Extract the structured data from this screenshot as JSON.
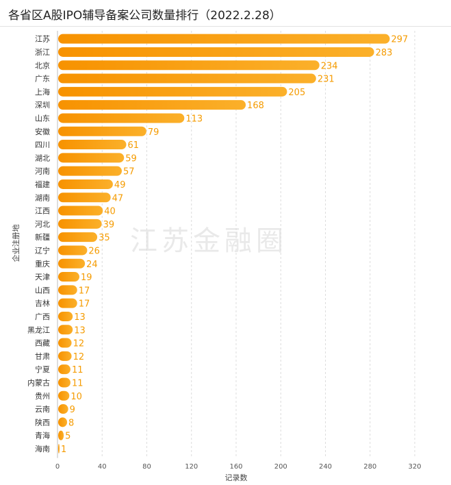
{
  "watermark": "江苏金融圈",
  "chart_data": {
    "type": "bar",
    "orientation": "horizontal",
    "title": "各省区A股IPO辅导备案公司数量排行（2022.2.28）",
    "xlabel": "记录数",
    "ylabel": "企业注册地",
    "xlim": [
      0,
      320
    ],
    "xticks": [
      0,
      40,
      80,
      120,
      160,
      200,
      240,
      280,
      320
    ],
    "grid": true,
    "bar_color": "#f7a300",
    "categories": [
      "江苏",
      "浙江",
      "北京",
      "广东",
      "上海",
      "深圳",
      "山东",
      "安徽",
      "四川",
      "湖北",
      "河南",
      "福建",
      "湖南",
      "江西",
      "河北",
      "新疆",
      "辽宁",
      "重庆",
      "天津",
      "山西",
      "吉林",
      "广西",
      "黑龙江",
      "西藏",
      "甘肃",
      "宁夏",
      "内蒙古",
      "贵州",
      "云南",
      "陕西",
      "青海",
      "海南"
    ],
    "values": [
      297,
      283,
      234,
      231,
      205,
      168,
      113,
      79,
      61,
      59,
      57,
      49,
      47,
      40,
      39,
      35,
      26,
      24,
      19,
      17,
      17,
      13,
      13,
      12,
      12,
      11,
      11,
      10,
      9,
      8,
      5,
      1
    ]
  }
}
